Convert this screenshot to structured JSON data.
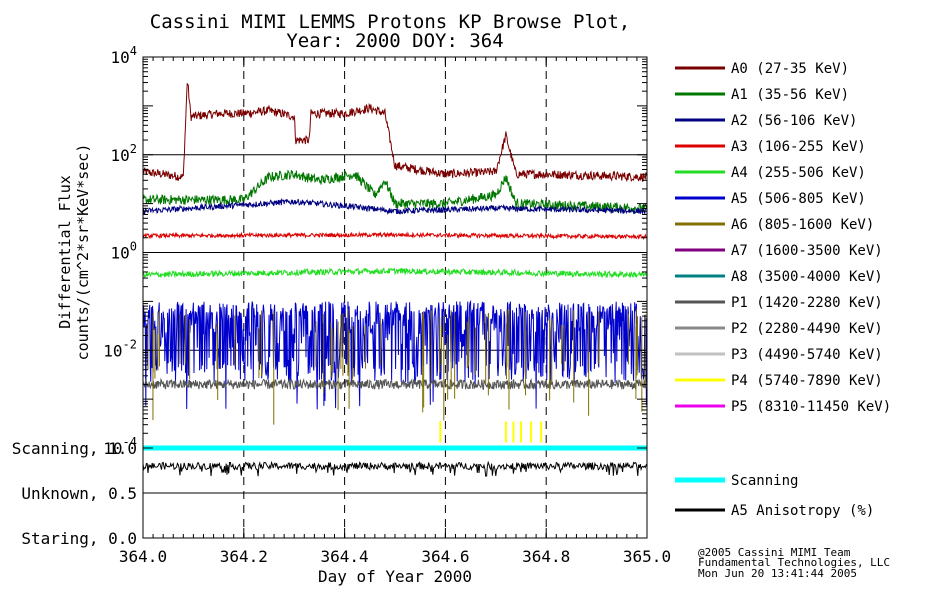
{
  "title": "Cassini MIMI LEMMS Protons KP Browse Plot,",
  "subtitle": "Year: 2000 DOY: 364",
  "ylabel_line1": "Differential Flux",
  "ylabel_line2": "counts/(cm^2*sr*KeV*sec)",
  "xlabel": "Day of Year 2000",
  "footer": {
    "line1": "@2005 Cassini MIMI Team",
    "line2": "Fundamental Technologies, LLC",
    "line3": "Mon Jun 20 13:41:44 2005"
  },
  "chart_data": [
    {
      "type": "line",
      "title": "Cassini MIMI LEMMS Protons KP Browse Plot, Year: 2000 DOY: 364",
      "xlabel": "Day of Year 2000",
      "ylabel": "Differential Flux counts/(cm^2*sr*KeV*sec)",
      "yscale": "log",
      "xlim": [
        364.0,
        365.0
      ],
      "ylim": [
        0.0001,
        10000
      ],
      "x_ticks": [
        "364.0",
        "364.2",
        "364.4",
        "364.6",
        "364.8",
        "365.0"
      ],
      "x_tick_values": [
        364.0,
        364.2,
        364.4,
        364.6,
        364.8,
        365.0
      ],
      "y_ticks": [
        {
          "value": 10000,
          "base": "10",
          "exp": "4"
        },
        {
          "value": 100,
          "base": "10",
          "exp": "2"
        },
        {
          "value": 1,
          "base": "10",
          "exp": "0"
        },
        {
          "value": 0.01,
          "base": "10",
          "exp": "-2"
        },
        {
          "value": 0.0001,
          "base": "10",
          "exp": "-4"
        }
      ],
      "legend_position": "right",
      "series": [
        {
          "name": "A0 (27-35 KeV)",
          "color": "#7a0000",
          "points": [
            [
              364.0,
              45
            ],
            [
              364.08,
              35
            ],
            [
              364.088,
              3500
            ],
            [
              364.095,
              600
            ],
            [
              364.15,
              700
            ],
            [
              364.2,
              700
            ],
            [
              364.25,
              800
            ],
            [
              364.3,
              600
            ],
            [
              364.303,
              200
            ],
            [
              364.33,
              200
            ],
            [
              364.333,
              700
            ],
            [
              364.4,
              700
            ],
            [
              364.45,
              900
            ],
            [
              364.48,
              700
            ],
            [
              364.5,
              60
            ],
            [
              364.6,
              40
            ],
            [
              364.7,
              45
            ],
            [
              364.72,
              250
            ],
            [
              364.74,
              40
            ],
            [
              364.8,
              40
            ],
            [
              365.0,
              35
            ]
          ]
        },
        {
          "name": "A1 (35-56 KeV)",
          "color": "#007700",
          "points": [
            [
              364.0,
              12
            ],
            [
              364.2,
              12
            ],
            [
              364.25,
              35
            ],
            [
              364.3,
              40
            ],
            [
              364.35,
              30
            ],
            [
              364.42,
              40
            ],
            [
              364.46,
              15
            ],
            [
              364.48,
              30
            ],
            [
              364.5,
              10
            ],
            [
              364.6,
              10
            ],
            [
              364.7,
              15
            ],
            [
              364.72,
              35
            ],
            [
              364.74,
              10
            ],
            [
              365.0,
              8
            ]
          ]
        },
        {
          "name": "A2 (56-106 KeV)",
          "color": "#000080",
          "points": [
            [
              364.0,
              7
            ],
            [
              364.3,
              11
            ],
            [
              364.4,
              9
            ],
            [
              364.5,
              7
            ],
            [
              364.7,
              8
            ],
            [
              365.0,
              7
            ]
          ]
        },
        {
          "name": "A3 (106-255 KeV)",
          "color": "#dd0000",
          "points": [
            [
              364.0,
              2.2
            ],
            [
              364.5,
              2.3
            ],
            [
              365.0,
              2.1
            ]
          ]
        },
        {
          "name": "A4 (255-506 KeV)",
          "color": "#22dd22",
          "points": [
            [
              364.0,
              0.35
            ],
            [
              364.5,
              0.42
            ],
            [
              365.0,
              0.35
            ]
          ]
        },
        {
          "name": "A5 (506-805 KeV)",
          "color": "#0000cc",
          "points": [
            [
              364.0,
              0.02
            ],
            [
              364.5,
              0.02
            ],
            [
              365.0,
              0.02
            ]
          ]
        },
        {
          "name": "A6 (805-1600 KeV)",
          "color": "#807000",
          "points": []
        },
        {
          "name": "A7 (1600-3500 KeV)",
          "color": "#800080",
          "points": []
        },
        {
          "name": "A8 (3500-4000 KeV)",
          "color": "#008080",
          "points": []
        },
        {
          "name": "P1 (1420-2280 KeV)",
          "color": "#555555",
          "points": [
            [
              364.0,
              0.002
            ],
            [
              364.5,
              0.002
            ],
            [
              365.0,
              0.002
            ]
          ]
        },
        {
          "name": "P2 (2280-4490 KeV)",
          "color": "#888888",
          "points": []
        },
        {
          "name": "P3 (4490-5740 KeV)",
          "color": "#c0c0c0",
          "points": []
        },
        {
          "name": "P4 (5740-7890 KeV)",
          "color": "#ffff00",
          "points": []
        },
        {
          "name": "P5 (8310-11450 KeV)",
          "color": "#ee00ee",
          "points": []
        }
      ]
    },
    {
      "type": "line",
      "xlim": [
        364.0,
        365.0
      ],
      "ylim": [
        0.0,
        1.0
      ],
      "y_ticks": [
        "Scanning, 1.0",
        "Unknown, 0.5",
        "Staring, 0.0"
      ],
      "y_tick_values": [
        1.0,
        0.5,
        0.0
      ],
      "series": [
        {
          "name": "Scanning",
          "color": "#00ffff",
          "points": [
            [
              364.0,
              1.0
            ],
            [
              365.0,
              1.0
            ]
          ]
        },
        {
          "name": "A5 Anisotropy (%)",
          "color": "#000000",
          "points": [
            [
              364.0,
              0.8
            ],
            [
              365.0,
              0.8
            ]
          ]
        }
      ]
    }
  ]
}
